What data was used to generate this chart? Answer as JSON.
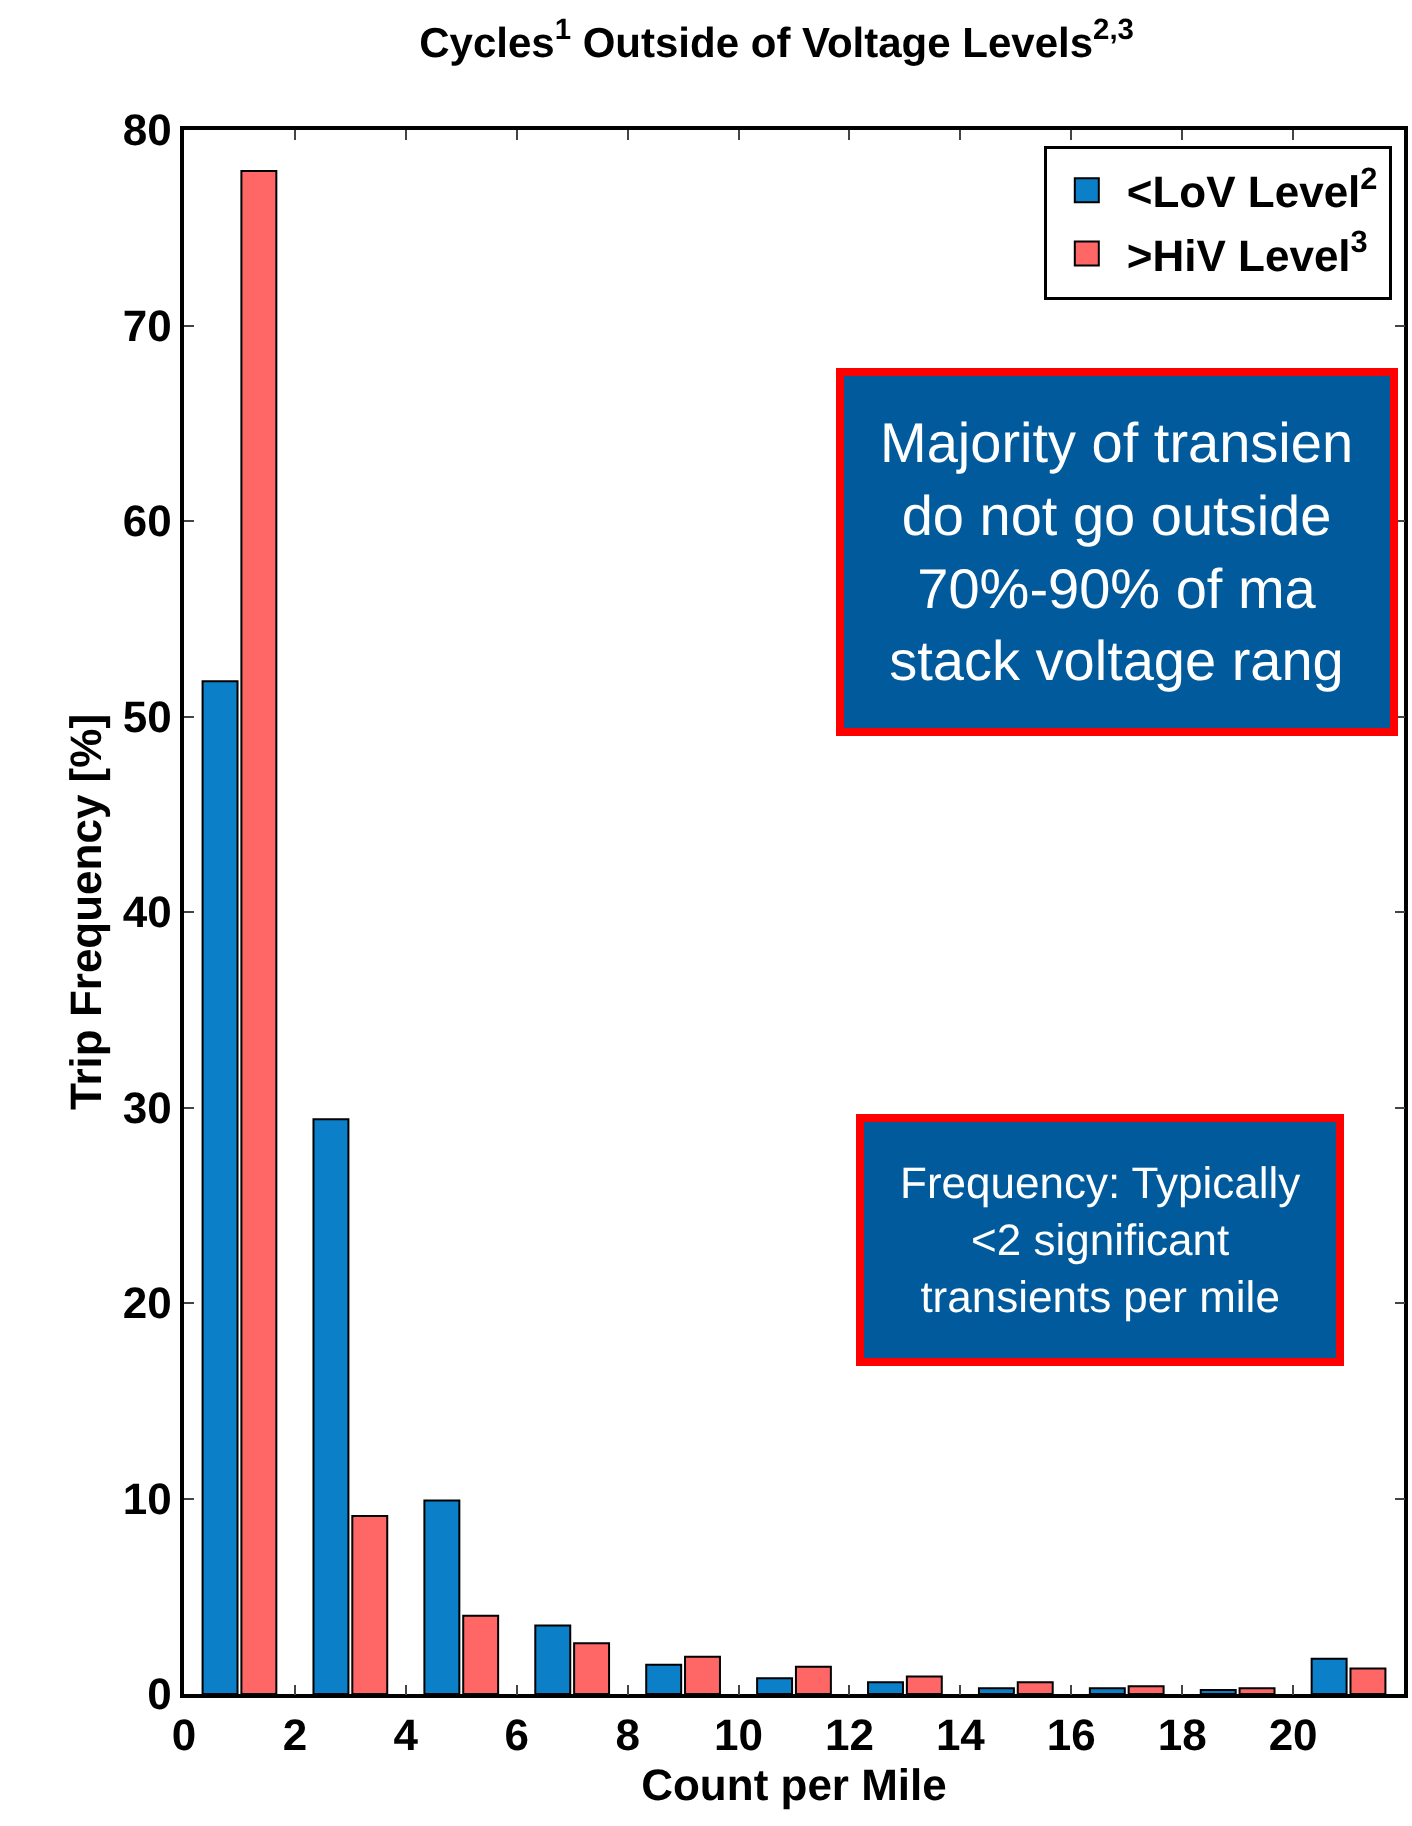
{
  "chart_data": {
    "type": "bar",
    "title": "Cycles$^{1}$ Outside of Voltage Levels$^{2,3}$",
    "xlabel": "Count per Mile",
    "ylabel": "Trip Frequency [%]",
    "x": [
      1,
      3,
      5,
      7,
      9,
      11,
      13,
      15,
      17,
      19,
      21
    ],
    "series": [
      {
        "name": "<LoV Level$^{2}$",
        "color": "#0b80c8",
        "values": [
          51.8,
          29.4,
          9.9,
          3.5,
          1.5,
          0.8,
          0.6,
          0.3,
          0.3,
          0.2,
          1.8
        ]
      },
      {
        "name": ">HiV Level$^{3}$",
        "color": "#ff6666",
        "values": [
          77.9,
          9.1,
          4.0,
          2.6,
          1.9,
          1.4,
          0.9,
          0.6,
          0.4,
          0.3,
          1.3
        ]
      }
    ],
    "xlim": [
      0,
      22
    ],
    "xticks": [
      0,
      2,
      4,
      6,
      8,
      10,
      12,
      14,
      16,
      18,
      20
    ],
    "ylim": [
      0,
      80
    ],
    "yticks": [
      0,
      10,
      20,
      30,
      40,
      50,
      60,
      70,
      80
    ],
    "legend": "top right",
    "annotations": [
      "Majority of transien\ndo not go outside\n70%-90% of ma\nstack voltage rang",
      "Frequency: Typically\n<2 significant\ntransients per mile"
    ]
  }
}
